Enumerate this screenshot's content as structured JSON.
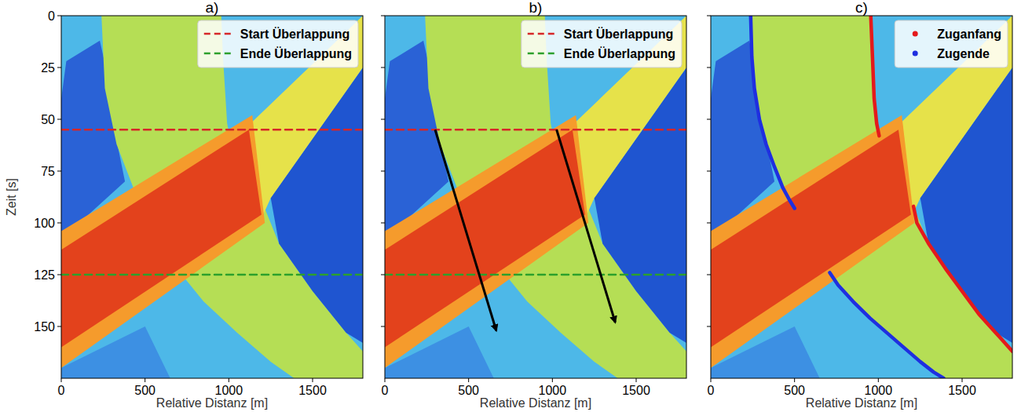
{
  "chart_data": [
    {
      "type": "heatmap",
      "title": "a)",
      "xlabel": "Relative Distanz [m]",
      "ylabel": "Zeit [s]",
      "xlim": [
        0,
        1800
      ],
      "xticks": [
        0,
        500,
        1000,
        1500
      ],
      "ylim": [
        0,
        175
      ],
      "yticks": [
        0,
        25,
        50,
        75,
        100,
        125,
        150
      ],
      "legend": "upper right",
      "heatmap_regions": [
        {
          "color": "#4db8e8",
          "x": [
            0,
            1800,
            1800,
            0
          ],
          "y": [
            0,
            0,
            175,
            175
          ]
        },
        {
          "color": "#2a62d6",
          "x": [
            30,
            230,
            280,
            330,
            380,
            0,
            0
          ],
          "y": [
            22,
            12,
            30,
            60,
            80,
            108,
            40
          ]
        },
        {
          "color": "#3d90e3",
          "x": [
            0,
            500,
            650,
            0
          ],
          "y": [
            170,
            150,
            175,
            175
          ]
        },
        {
          "color": "#b5de55",
          "x": [
            240,
            955,
            965,
            990,
            1005,
            1210,
            1300,
            1500,
            1700,
            1800,
            1800,
            1390,
            1250,
            1050,
            850,
            710,
            500,
            430,
            330,
            260
          ],
          "y": [
            0,
            0,
            20,
            52,
            58,
            92,
            110,
            133,
            153,
            162,
            175,
            175,
            167,
            153,
            138,
            124,
            93,
            83,
            62,
            35
          ]
        },
        {
          "color": "#1f55d0",
          "x": [
            1250,
            1800,
            1800,
            1700,
            1500,
            1300
          ],
          "y": [
            88,
            25,
            158,
            153,
            133,
            110
          ]
        },
        {
          "color": "#e6e24a",
          "x": [
            1130,
            1800,
            1800,
            1250,
            1200
          ],
          "y": [
            52,
            0,
            25,
            88,
            97
          ]
        },
        {
          "color": "#f59b2c",
          "x": [
            0,
            1140,
            1215,
            0
          ],
          "y": [
            104,
            48,
            100,
            170
          ]
        },
        {
          "color": "#e3421c",
          "x": [
            0,
            1120,
            1195,
            0
          ],
          "y": [
            113,
            55,
            96,
            160
          ]
        }
      ],
      "series": [
        {
          "name": "Start Überlappung",
          "color": "#d62728",
          "line_style": "dashed",
          "x": [
            0,
            1800
          ],
          "values": [
            55,
            55
          ]
        },
        {
          "name": "Ende Überlappung",
          "color": "#2ca02c",
          "line_style": "dashed",
          "x": [
            0,
            1800
          ],
          "values": [
            125,
            125
          ]
        }
      ]
    },
    {
      "type": "heatmap",
      "title": "b)",
      "xlabel": "Relative Distanz [m]",
      "xlim": [
        0,
        1800
      ],
      "xticks": [
        0,
        500,
        1000,
        1500
      ],
      "ylim": [
        0,
        175
      ],
      "yticks": [
        0,
        25,
        50,
        75,
        100,
        125,
        150
      ],
      "tick_labels": "x",
      "legend": "upper right",
      "heatmap_regions": [
        {
          "color": "#4db8e8",
          "x": [
            0,
            1800,
            1800,
            0
          ],
          "y": [
            0,
            0,
            175,
            175
          ]
        },
        {
          "color": "#2a62d6",
          "x": [
            30,
            230,
            280,
            330,
            380,
            0,
            0
          ],
          "y": [
            22,
            12,
            30,
            60,
            80,
            108,
            40
          ]
        },
        {
          "color": "#3d90e3",
          "x": [
            0,
            500,
            650,
            0
          ],
          "y": [
            170,
            150,
            175,
            175
          ]
        },
        {
          "color": "#b5de55",
          "x": [
            240,
            955,
            965,
            990,
            1005,
            1210,
            1300,
            1500,
            1700,
            1800,
            1800,
            1390,
            1250,
            1050,
            850,
            710,
            500,
            430,
            330,
            260
          ],
          "y": [
            0,
            0,
            20,
            52,
            58,
            92,
            110,
            133,
            153,
            162,
            175,
            175,
            167,
            153,
            138,
            124,
            93,
            83,
            62,
            35
          ]
        },
        {
          "color": "#1f55d0",
          "x": [
            1250,
            1800,
            1800,
            1700,
            1500,
            1300
          ],
          "y": [
            88,
            25,
            158,
            153,
            133,
            110
          ]
        },
        {
          "color": "#e6e24a",
          "x": [
            1130,
            1800,
            1800,
            1250,
            1200
          ],
          "y": [
            52,
            0,
            25,
            88,
            97
          ]
        },
        {
          "color": "#f59b2c",
          "x": [
            0,
            1140,
            1215,
            0
          ],
          "y": [
            104,
            48,
            100,
            170
          ]
        },
        {
          "color": "#e3421c",
          "x": [
            0,
            1120,
            1195,
            0
          ],
          "y": [
            113,
            55,
            96,
            160
          ]
        }
      ],
      "series": [
        {
          "name": "Start Überlappung",
          "color": "#d62728",
          "line_style": "dashed",
          "x": [
            0,
            1800
          ],
          "values": [
            55,
            55
          ]
        },
        {
          "name": "Ende Überlappung",
          "color": "#2ca02c",
          "line_style": "dashed",
          "x": [
            0,
            1800
          ],
          "values": [
            125,
            125
          ]
        }
      ],
      "arrows": [
        {
          "color": "#000000",
          "x": [
            300,
            665
          ],
          "values": [
            55,
            152
          ]
        },
        {
          "color": "#000000",
          "x": [
            1025,
            1375
          ],
          "values": [
            55,
            148
          ]
        }
      ]
    },
    {
      "type": "heatmap",
      "title": "c)",
      "xlabel": "Relative Distanz [m]",
      "xlim": [
        0,
        1800
      ],
      "xticks": [
        0,
        500,
        1000,
        1500
      ],
      "ylim": [
        0,
        175
      ],
      "yticks": [
        0,
        25,
        50,
        75,
        100,
        125,
        150
      ],
      "tick_labels": "x",
      "legend": "upper right",
      "heatmap_regions": [
        {
          "color": "#4db8e8",
          "x": [
            0,
            1800,
            1800,
            0
          ],
          "y": [
            0,
            0,
            175,
            175
          ]
        },
        {
          "color": "#2a62d6",
          "x": [
            30,
            230,
            280,
            330,
            380,
            0,
            0
          ],
          "y": [
            22,
            12,
            30,
            60,
            80,
            108,
            40
          ]
        },
        {
          "color": "#3d90e3",
          "x": [
            0,
            500,
            650,
            0
          ],
          "y": [
            170,
            150,
            175,
            175
          ]
        },
        {
          "color": "#b5de55",
          "x": [
            240,
            955,
            965,
            990,
            1005,
            1210,
            1300,
            1500,
            1700,
            1800,
            1800,
            1390,
            1250,
            1050,
            850,
            710,
            500,
            430,
            330,
            260
          ],
          "y": [
            0,
            0,
            20,
            52,
            58,
            92,
            110,
            133,
            153,
            162,
            175,
            175,
            167,
            153,
            138,
            124,
            93,
            83,
            62,
            35
          ]
        },
        {
          "color": "#1f55d0",
          "x": [
            1250,
            1800,
            1800,
            1700,
            1500,
            1300
          ],
          "y": [
            88,
            25,
            158,
            153,
            133,
            110
          ]
        },
        {
          "color": "#e6e24a",
          "x": [
            1130,
            1800,
            1800,
            1250,
            1200
          ],
          "y": [
            52,
            0,
            25,
            88,
            97
          ]
        },
        {
          "color": "#f59b2c",
          "x": [
            0,
            1140,
            1215,
            0
          ],
          "y": [
            104,
            48,
            100,
            170
          ]
        },
        {
          "color": "#e3421c",
          "x": [
            0,
            1120,
            1195,
            0
          ],
          "y": [
            113,
            55,
            96,
            160
          ]
        }
      ],
      "series": [
        {
          "name": "Zuganfang",
          "color": "#e41a1c",
          "marker": "o",
          "line_style": "solid",
          "x": [
            955,
            965,
            975,
            990,
            1005,
            null,
            1210,
            1230,
            1300,
            1400,
            1500,
            1600,
            1700,
            1800
          ],
          "values": [
            0,
            20,
            40,
            52,
            58,
            null,
            92,
            100,
            110,
            122,
            133,
            144,
            153,
            162
          ]
        },
        {
          "name": "Zugende",
          "color": "#1f2fe0",
          "marker": "o",
          "line_style": "solid",
          "x": [
            238,
            245,
            260,
            290,
            330,
            380,
            430,
            470,
            500,
            null,
            710,
            760,
            850,
            950,
            1050,
            1150,
            1250,
            1330,
            1390
          ],
          "values": [
            0,
            20,
            35,
            50,
            62,
            73,
            83,
            89,
            93,
            null,
            124,
            130,
            138,
            146,
            153,
            160,
            167,
            172,
            175
          ]
        }
      ]
    }
  ]
}
